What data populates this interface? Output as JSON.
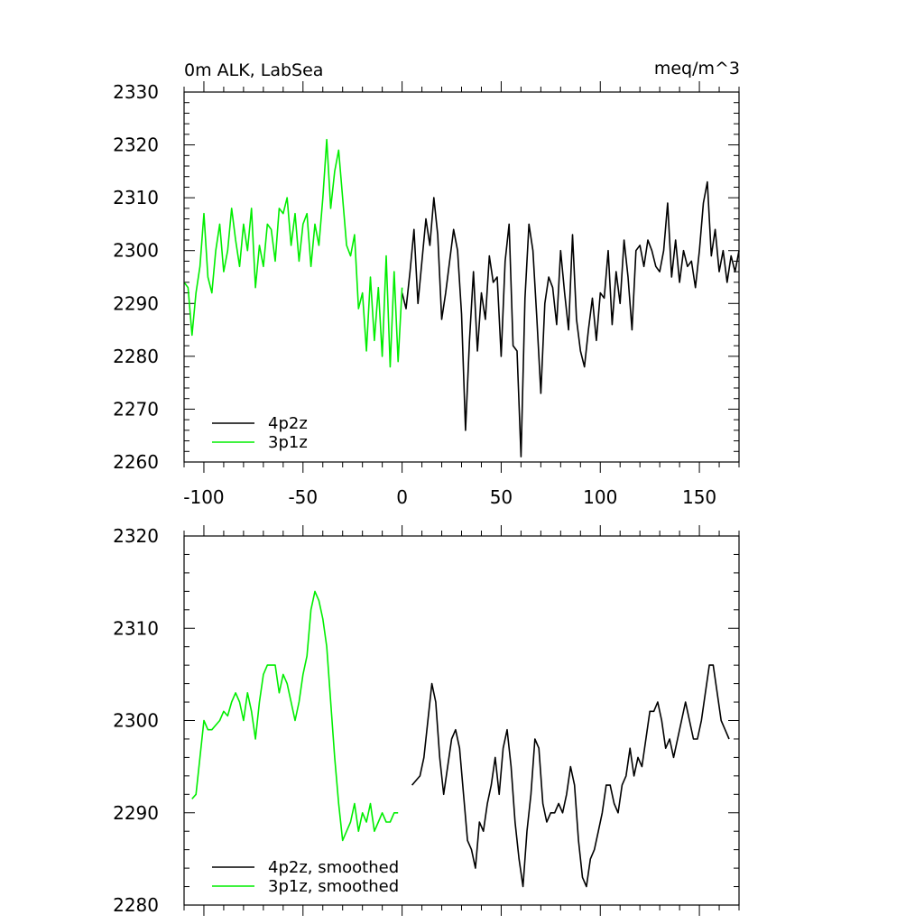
{
  "colors": {
    "series_4p2z": "#000000",
    "series_3p1z": "#00ee00",
    "axis": "#000000",
    "background": "#ffffff"
  },
  "chart_data": [
    {
      "type": "line",
      "title": "0m ALK, LabSea",
      "units": "meq/m^3",
      "xlim": [
        -110,
        170
      ],
      "ylim": [
        2260,
        2330
      ],
      "x_ticks": [
        -100,
        -50,
        0,
        50,
        100,
        150
      ],
      "x_tick_labels": [
        "-100",
        "-50",
        "0",
        "50",
        "100",
        "150"
      ],
      "y_ticks": [
        2260,
        2270,
        2280,
        2290,
        2300,
        2310,
        2320,
        2330
      ],
      "y_tick_labels": [
        "2260",
        "2270",
        "2280",
        "2290",
        "2300",
        "2310",
        "2320",
        "2330"
      ],
      "legend_position": "bottom-left",
      "series": [
        {
          "name": "4p2z",
          "color": "#000000",
          "x": [
            0,
            2,
            4,
            6,
            8,
            10,
            12,
            14,
            16,
            18,
            20,
            22,
            24,
            26,
            28,
            30,
            32,
            34,
            36,
            38,
            40,
            42,
            44,
            46,
            48,
            50,
            52,
            54,
            56,
            58,
            60,
            62,
            64,
            66,
            68,
            70,
            72,
            74,
            76,
            78,
            80,
            82,
            84,
            86,
            88,
            90,
            92,
            94,
            96,
            98,
            100,
            102,
            104,
            106,
            108,
            110,
            112,
            114,
            116,
            118,
            120,
            122,
            124,
            126,
            128,
            130,
            132,
            134,
            136,
            138,
            140,
            142,
            144,
            146,
            148,
            150,
            152,
            154,
            156,
            158,
            160,
            162,
            164,
            166,
            168,
            170
          ],
          "values": [
            2292,
            2289,
            2296,
            2304,
            2290,
            2298,
            2306,
            2301,
            2310,
            2303,
            2287,
            2292,
            2298,
            2304,
            2300,
            2288,
            2266,
            2283,
            2296,
            2281,
            2292,
            2287,
            2299,
            2294,
            2295,
            2280,
            2298,
            2305,
            2282,
            2281,
            2261,
            2291,
            2305,
            2300,
            2287,
            2273,
            2290,
            2295,
            2293,
            2286,
            2300,
            2292,
            2285,
            2303,
            2287,
            2281,
            2278,
            2285,
            2291,
            2283,
            2292,
            2291,
            2300,
            2286,
            2296,
            2290,
            2302,
            2295,
            2285,
            2300,
            2301,
            2297,
            2302,
            2300,
            2297,
            2296,
            2300,
            2309,
            2295,
            2302,
            2294,
            2300,
            2297,
            2298,
            2293,
            2300,
            2309,
            2313,
            2299,
            2304,
            2296,
            2300,
            2294,
            2299,
            2296,
            2300
          ]
        },
        {
          "name": "3p1z",
          "color": "#00ee00",
          "x": [
            -110,
            -108,
            -106,
            -104,
            -102,
            -100,
            -98,
            -96,
            -94,
            -92,
            -90,
            -88,
            -86,
            -84,
            -82,
            -80,
            -78,
            -76,
            -74,
            -72,
            -70,
            -68,
            -66,
            -64,
            -62,
            -60,
            -58,
            -56,
            -54,
            -52,
            -50,
            -48,
            -46,
            -44,
            -42,
            -40,
            -38,
            -36,
            -34,
            -32,
            -30,
            -28,
            -26,
            -24,
            -22,
            -20,
            -18,
            -16,
            -14,
            -12,
            -10,
            -8,
            -6,
            -4,
            -2,
            0
          ],
          "values": [
            2294,
            2293,
            2284,
            2292,
            2297,
            2307,
            2295,
            2292,
            2300,
            2305,
            2296,
            2300,
            2308,
            2302,
            2297,
            2305,
            2300,
            2308,
            2293,
            2301,
            2297,
            2305,
            2304,
            2298,
            2308,
            2307,
            2310,
            2301,
            2307,
            2298,
            2305,
            2307,
            2297,
            2305,
            2301,
            2310,
            2321,
            2308,
            2315,
            2319,
            2310,
            2301,
            2299,
            2303,
            2289,
            2292,
            2281,
            2295,
            2283,
            2293,
            2280,
            2299,
            2278,
            2296,
            2279,
            2293
          ]
        }
      ]
    },
    {
      "type": "line",
      "title": "",
      "xlim": [
        -110,
        170
      ],
      "ylim": [
        2280,
        2320
      ],
      "x_ticks": [
        -100,
        -50,
        0,
        50,
        100,
        150
      ],
      "y_ticks": [
        2280,
        2290,
        2300,
        2310,
        2320
      ],
      "y_tick_labels": [
        "2280",
        "2290",
        "2300",
        "2310",
        "2320"
      ],
      "legend_position": "bottom-left",
      "series": [
        {
          "name": "4p2z, smoothed",
          "color": "#000000",
          "x": [
            5,
            7,
            9,
            11,
            13,
            15,
            17,
            19,
            21,
            23,
            25,
            27,
            29,
            31,
            33,
            35,
            37,
            39,
            41,
            43,
            45,
            47,
            49,
            51,
            53,
            55,
            57,
            59,
            61,
            63,
            65,
            67,
            69,
            71,
            73,
            75,
            77,
            79,
            81,
            83,
            85,
            87,
            89,
            91,
            93,
            95,
            97,
            99,
            101,
            103,
            105,
            107,
            109,
            111,
            113,
            115,
            117,
            119,
            121,
            123,
            125,
            127,
            129,
            131,
            133,
            135,
            137,
            139,
            141,
            143,
            145,
            147,
            149,
            151,
            153,
            155,
            157,
            159,
            161,
            163,
            165
          ],
          "values": [
            2293,
            2293.5,
            2294,
            2296,
            2300,
            2304,
            2302,
            2296,
            2292,
            2295,
            2298,
            2299,
            2297,
            2292,
            2287,
            2286,
            2284,
            2289,
            2288,
            2291,
            2293,
            2296,
            2292,
            2297,
            2299,
            2295,
            2289,
            2285,
            2282,
            2288,
            2292,
            2298,
            2297,
            2291,
            2289,
            2290,
            2290,
            2291,
            2290,
            2292,
            2295,
            2293,
            2287,
            2283,
            2282,
            2285,
            2286,
            2288,
            2290,
            2293,
            2293,
            2291,
            2290,
            2293,
            2294,
            2297,
            2294,
            2296,
            2295,
            2298,
            2301,
            2301,
            2302,
            2300,
            2297,
            2298,
            2296,
            2298,
            2300,
            2302,
            2300,
            2298,
            2298,
            2300,
            2303,
            2306,
            2306,
            2303,
            2300,
            2299,
            2298
          ]
        },
        {
          "name": "3p1z, smoothed",
          "color": "#00ee00",
          "x": [
            -106,
            -104,
            -102,
            -100,
            -98,
            -96,
            -94,
            -92,
            -90,
            -88,
            -86,
            -84,
            -82,
            -80,
            -78,
            -76,
            -74,
            -72,
            -70,
            -68,
            -66,
            -64,
            -62,
            -60,
            -58,
            -56,
            -54,
            -52,
            -50,
            -48,
            -46,
            -44,
            -42,
            -40,
            -38,
            -36,
            -34,
            -32,
            -30,
            -28,
            -26,
            -24,
            -22,
            -20,
            -18,
            -16,
            -14,
            -12,
            -10,
            -8,
            -6,
            -4,
            -2
          ],
          "values": [
            2291.5,
            2292,
            2296,
            2300,
            2299,
            2299,
            2299.5,
            2300,
            2301,
            2300.5,
            2302,
            2303,
            2302,
            2300,
            2303,
            2301,
            2298,
            2302,
            2305,
            2306,
            2306,
            2306,
            2303,
            2305,
            2304,
            2302,
            2300,
            2302,
            2305,
            2307,
            2312,
            2314,
            2313,
            2311,
            2308,
            2302,
            2296,
            2291,
            2287,
            2288,
            2289,
            2291,
            2288,
            2290,
            2289,
            2291,
            2288,
            2289,
            2290,
            2289,
            2289,
            2290,
            2290
          ]
        }
      ]
    }
  ]
}
